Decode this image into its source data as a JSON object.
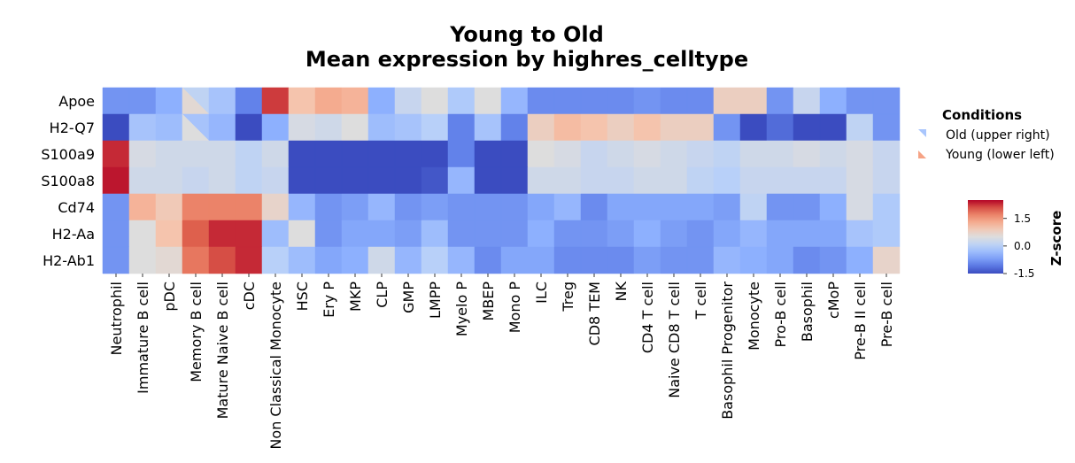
{
  "chart_data": {
    "type": "heatmap",
    "title": [
      "Young to Old",
      "Mean expression by highres_celltype"
    ],
    "rows": [
      "Apoe",
      "H2-Q7",
      "S100a9",
      "S100a8",
      "Cd74",
      "H2-Aa",
      "H2-Ab1"
    ],
    "columns": [
      "Neutrophil",
      "Immature B cell",
      "pDC",
      "Memory B cell",
      "Mature Naive B cell",
      "cDC",
      "Non Classical Monocyte",
      "HSC",
      "Ery P",
      "MKP",
      "CLP",
      "GMP",
      "LMPP",
      "Myelo P",
      "MBEP",
      "Mono P",
      "ILC",
      "Treg",
      "CD8 TEM",
      "NK",
      "CD4 T cell",
      "Naive CD8 T cell",
      "T cell",
      "Basophil Progenitor",
      "Monocyte",
      "Pro-B cell",
      "Basophil",
      "cMoP",
      "Pre-B II cell",
      "Pre-B cell"
    ],
    "old_upper_right": [
      [
        -0.8,
        -0.8,
        -0.5,
        0.1,
        -0.2,
        -1.0,
        2.2,
        1.0,
        1.3,
        1.2,
        -0.5,
        0.2,
        0.5,
        -0.1,
        0.5,
        -0.4,
        -0.9,
        -0.9,
        -0.9,
        -0.9,
        -0.8,
        -0.9,
        -0.9,
        0.8,
        0.8,
        -0.8,
        0.2,
        -0.5,
        -0.8,
        -0.8
      ],
      [
        -1.5,
        -0.2,
        -0.3,
        -0.2,
        -0.4,
        -1.5,
        -0.5,
        0.4,
        0.3,
        0.5,
        -0.3,
        -0.2,
        0.0,
        -1.0,
        -0.2,
        -1.0,
        0.8,
        1.1,
        1.0,
        0.8,
        1.0,
        0.8,
        0.8,
        -0.8,
        -1.5,
        -1.2,
        -1.5,
        -1.5,
        0.1,
        -0.8
      ],
      [
        2.3,
        0.4,
        0.3,
        0.3,
        0.3,
        0.1,
        0.3,
        -1.5,
        -1.5,
        -1.5,
        -1.5,
        -1.5,
        -1.5,
        -1.0,
        -1.5,
        -1.5,
        0.5,
        0.4,
        0.2,
        0.3,
        0.4,
        0.3,
        0.2,
        0.1,
        0.3,
        0.3,
        0.4,
        0.3,
        0.4,
        0.2
      ],
      [
        2.4,
        0.3,
        0.3,
        0.2,
        0.3,
        0.1,
        0.2,
        -1.5,
        -1.5,
        -1.5,
        -1.5,
        -1.5,
        -1.4,
        -0.4,
        -1.5,
        -1.5,
        0.3,
        0.3,
        0.2,
        0.2,
        0.3,
        0.3,
        0.1,
        0.0,
        0.2,
        0.2,
        0.2,
        0.2,
        0.4,
        0.2
      ],
      [
        -0.8,
        1.2,
        0.9,
        1.7,
        1.7,
        1.7,
        0.7,
        -0.4,
        -0.8,
        -0.7,
        -0.4,
        -0.8,
        -0.7,
        -0.8,
        -0.8,
        -0.8,
        -0.6,
        -0.4,
        -0.9,
        -0.6,
        -0.6,
        -0.6,
        -0.6,
        -0.7,
        0.1,
        -0.8,
        -0.8,
        -0.5,
        0.4,
        -0.1
      ],
      [
        -0.8,
        0.5,
        1.0,
        2.0,
        2.3,
        2.3,
        -0.3,
        0.5,
        -0.8,
        -0.6,
        -0.6,
        -0.7,
        -0.3,
        -0.8,
        -0.8,
        -0.8,
        -0.5,
        -0.8,
        -0.8,
        -0.7,
        -0.5,
        -0.7,
        -0.8,
        -0.6,
        -0.4,
        -0.6,
        -0.6,
        -0.6,
        -0.2,
        -0.1
      ],
      [
        -0.8,
        0.5,
        0.6,
        1.8,
        2.1,
        2.3,
        0.0,
        -0.3,
        -0.6,
        -0.5,
        0.3,
        -0.4,
        0.0,
        -0.4,
        -0.9,
        -0.6,
        -0.6,
        -0.9,
        -0.9,
        -0.9,
        -0.7,
        -0.8,
        -0.8,
        -0.4,
        -0.5,
        -0.6,
        -0.9,
        -0.8,
        -0.5,
        0.7
      ]
    ],
    "young_lower_left": [
      [
        -0.8,
        -0.8,
        -0.5,
        0.6,
        -0.2,
        -1.0,
        2.2,
        1.0,
        1.3,
        1.2,
        -0.5,
        0.2,
        0.5,
        -0.1,
        0.5,
        -0.4,
        -0.9,
        -0.9,
        -0.9,
        -0.9,
        -0.8,
        -0.9,
        -0.9,
        0.8,
        0.8,
        -0.8,
        0.2,
        -0.5,
        -0.8,
        -0.8
      ],
      [
        -1.5,
        -0.2,
        -0.3,
        0.5,
        -0.4,
        -1.5,
        -0.5,
        0.4,
        0.3,
        0.5,
        -0.3,
        -0.2,
        0.0,
        -1.0,
        -0.2,
        -1.0,
        0.8,
        1.1,
        1.0,
        0.8,
        1.0,
        0.8,
        0.8,
        -0.8,
        -1.5,
        -1.2,
        -1.5,
        -1.5,
        0.1,
        -0.8
      ],
      [
        2.3,
        0.4,
        0.3,
        0.3,
        0.3,
        0.1,
        0.3,
        -1.5,
        -1.5,
        -1.5,
        -1.5,
        -1.5,
        -1.5,
        -1.0,
        -1.5,
        -1.5,
        0.5,
        0.4,
        0.2,
        0.3,
        0.4,
        0.3,
        0.2,
        0.1,
        0.3,
        0.3,
        0.4,
        0.3,
        0.4,
        0.2
      ],
      [
        2.4,
        0.3,
        0.3,
        0.2,
        0.3,
        0.1,
        0.2,
        -1.5,
        -1.5,
        -1.5,
        -1.5,
        -1.5,
        -1.4,
        -0.4,
        -1.5,
        -1.5,
        0.3,
        0.3,
        0.2,
        0.2,
        0.3,
        0.3,
        0.1,
        0.0,
        0.2,
        0.2,
        0.2,
        0.2,
        0.4,
        0.2
      ],
      [
        -0.8,
        1.2,
        0.9,
        1.7,
        1.7,
        1.7,
        0.7,
        -0.4,
        -0.8,
        -0.7,
        -0.4,
        -0.8,
        -0.7,
        -0.8,
        -0.8,
        -0.8,
        -0.6,
        -0.4,
        -0.9,
        -0.6,
        -0.6,
        -0.6,
        -0.6,
        -0.7,
        0.1,
        -0.8,
        -0.8,
        -0.5,
        0.4,
        -0.1
      ],
      [
        -0.8,
        0.5,
        1.0,
        2.0,
        2.3,
        2.3,
        -0.3,
        0.5,
        -0.8,
        -0.6,
        -0.6,
        -0.7,
        -0.3,
        -0.8,
        -0.8,
        -0.8,
        -0.5,
        -0.8,
        -0.8,
        -0.7,
        -0.5,
        -0.7,
        -0.8,
        -0.6,
        -0.4,
        -0.6,
        -0.6,
        -0.6,
        -0.2,
        -0.1
      ],
      [
        -0.8,
        0.5,
        0.6,
        1.8,
        2.1,
        2.3,
        0.0,
        -0.3,
        -0.6,
        -0.5,
        0.3,
        -0.4,
        0.0,
        -0.4,
        -0.9,
        -0.6,
        -0.6,
        -0.9,
        -0.9,
        -0.9,
        -0.7,
        -0.8,
        -0.8,
        -0.4,
        -0.5,
        -0.6,
        -0.9,
        -0.8,
        -0.5,
        0.7
      ]
    ],
    "colormap": "coolwarm",
    "color_range": [
      -1.5,
      2.5
    ],
    "legend": {
      "title": "Conditions",
      "entries": [
        "Old (upper right)",
        "Young (lower left)"
      ],
      "entry_colors": [
        "#a9c6fd",
        "#f6a385"
      ],
      "placement": "right"
    },
    "colorbar": {
      "label": "Z-score",
      "ticks": [
        1.5,
        0.0,
        -1.5
      ],
      "tick_labels": [
        "1.5",
        "0.0",
        "-1.5"
      ]
    }
  }
}
